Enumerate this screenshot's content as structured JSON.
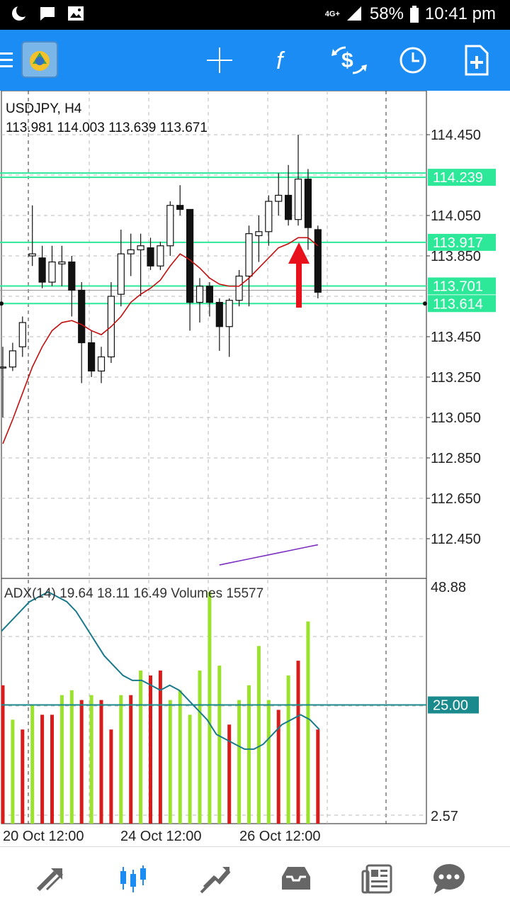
{
  "status_bar": {
    "network": "4G+",
    "battery": "58%",
    "time": "10:41 pm"
  },
  "toolbar": {
    "app_icon": "metatrader-logo-icon",
    "actions": [
      "crosshair-icon",
      "indicators-icon",
      "trade-icon",
      "timeframe-clock-icon",
      "new-order-icon"
    ]
  },
  "chart": {
    "symbol_title": "USDJPY, H4",
    "ohlc_text": "113.981 114.003 113.639 113.671",
    "indicator_text": "ADX(14) 19.64 18.11 16.49 Volumes 15577"
  },
  "chart_data": {
    "type": "candlestick",
    "price_axis": {
      "ticks": [
        "114.450",
        "114.050",
        "113.850",
        "113.450",
        "113.250",
        "113.050",
        "112.850",
        "112.650",
        "112.450"
      ],
      "highlighted_labels": [
        "114.239",
        "113.917",
        "113.701",
        "113.614"
      ],
      "highlight_color": "#2ee89a"
    },
    "indicator_axis": {
      "ticks": [
        "48.88",
        "2.57"
      ],
      "level_label": "25.00",
      "level_color": "#1a8a8c"
    },
    "time_axis": {
      "ticks": [
        "20 Oct 12:00",
        "24 Oct 12:00",
        "26 Oct 12:00"
      ]
    },
    "horizontal_levels": [
      114.239,
      113.917,
      113.701,
      113.614
    ],
    "candles": [
      {
        "o": 113.3,
        "h": 113.4,
        "l": 113.05,
        "c": 113.3
      },
      {
        "o": 113.3,
        "h": 113.42,
        "l": 113.28,
        "c": 113.38
      },
      {
        "o": 113.4,
        "h": 113.55,
        "l": 113.35,
        "c": 113.52
      },
      {
        "o": 113.85,
        "h": 114.1,
        "l": 113.8,
        "c": 113.86
      },
      {
        "o": 113.84,
        "h": 113.9,
        "l": 113.69,
        "c": 113.72
      },
      {
        "o": 113.72,
        "h": 113.9,
        "l": 113.7,
        "c": 113.82
      },
      {
        "o": 113.81,
        "h": 113.9,
        "l": 113.7,
        "c": 113.82
      },
      {
        "o": 113.82,
        "h": 113.85,
        "l": 113.55,
        "c": 113.68
      },
      {
        "o": 113.68,
        "h": 113.72,
        "l": 113.22,
        "c": 113.42
      },
      {
        "o": 113.42,
        "h": 113.48,
        "l": 113.25,
        "c": 113.28
      },
      {
        "o": 113.28,
        "h": 113.4,
        "l": 113.22,
        "c": 113.35
      },
      {
        "o": 113.35,
        "h": 113.72,
        "l": 113.32,
        "c": 113.65
      },
      {
        "o": 113.66,
        "h": 113.98,
        "l": 113.6,
        "c": 113.86
      },
      {
        "o": 113.86,
        "h": 113.96,
        "l": 113.75,
        "c": 113.88
      },
      {
        "o": 113.88,
        "h": 113.96,
        "l": 113.65,
        "c": 113.9
      },
      {
        "o": 113.89,
        "h": 113.94,
        "l": 113.78,
        "c": 113.8
      },
      {
        "o": 113.8,
        "h": 113.92,
        "l": 113.78,
        "c": 113.9
      },
      {
        "o": 113.9,
        "h": 114.12,
        "l": 113.85,
        "c": 114.1
      },
      {
        "o": 114.1,
        "h": 114.2,
        "l": 114.05,
        "c": 114.08
      },
      {
        "o": 114.08,
        "h": 114.08,
        "l": 113.48,
        "c": 113.62
      },
      {
        "o": 113.62,
        "h": 113.74,
        "l": 113.52,
        "c": 113.7
      },
      {
        "o": 113.7,
        "h": 113.72,
        "l": 113.55,
        "c": 113.62
      },
      {
        "o": 113.62,
        "h": 113.64,
        "l": 113.38,
        "c": 113.5
      },
      {
        "o": 113.5,
        "h": 113.64,
        "l": 113.35,
        "c": 113.63
      },
      {
        "o": 113.63,
        "h": 113.78,
        "l": 113.6,
        "c": 113.75
      },
      {
        "o": 113.75,
        "h": 114.0,
        "l": 113.6,
        "c": 113.96
      },
      {
        "o": 113.95,
        "h": 114.05,
        "l": 113.82,
        "c": 113.97
      },
      {
        "o": 113.97,
        "h": 114.15,
        "l": 113.9,
        "c": 114.12
      },
      {
        "o": 114.12,
        "h": 114.26,
        "l": 114.05,
        "c": 114.15
      },
      {
        "o": 114.15,
        "h": 114.3,
        "l": 114.0,
        "c": 114.03
      },
      {
        "o": 114.03,
        "h": 114.45,
        "l": 114.0,
        "c": 114.23
      },
      {
        "o": 114.23,
        "h": 114.28,
        "l": 113.88,
        "c": 113.99
      },
      {
        "o": 113.98,
        "h": 114.0,
        "l": 113.64,
        "c": 113.67
      }
    ],
    "moving_average_red": [
      112.92,
      113.04,
      113.17,
      113.3,
      113.4,
      113.48,
      113.52,
      113.53,
      113.51,
      113.48,
      113.46,
      113.5,
      113.55,
      113.62,
      113.66,
      113.69,
      113.73,
      113.8,
      113.86,
      113.83,
      113.79,
      113.74,
      113.71,
      113.7,
      113.7,
      113.74,
      113.79,
      113.84,
      113.89,
      113.91,
      113.94,
      113.94,
      113.9
    ],
    "moving_average_purple": [
      112.32,
      112.33,
      112.34,
      112.35,
      112.36,
      112.37,
      112.38,
      112.39,
      112.4,
      112.41,
      112.42
    ],
    "adx_line": [
      40,
      42,
      44,
      46,
      47,
      48,
      47,
      46,
      44,
      41,
      38,
      35,
      33,
      31,
      30,
      30,
      29,
      28,
      29,
      28,
      26,
      24,
      22,
      19,
      18,
      17,
      16,
      16,
      17,
      19,
      21,
      22,
      23,
      22,
      20
    ],
    "volumes": [
      {
        "v": 29,
        "up": false
      },
      {
        "v": 22,
        "up": true
      },
      {
        "v": 20,
        "up": false
      },
      {
        "v": 25,
        "up": true
      },
      {
        "v": 23,
        "up": false
      },
      {
        "v": 23,
        "up": false
      },
      {
        "v": 27,
        "up": true
      },
      {
        "v": 28,
        "up": true
      },
      {
        "v": 26,
        "up": false
      },
      {
        "v": 27,
        "up": true
      },
      {
        "v": 26,
        "up": false
      },
      {
        "v": 20,
        "up": false
      },
      {
        "v": 27,
        "up": true
      },
      {
        "v": 27,
        "up": false
      },
      {
        "v": 32,
        "up": true
      },
      {
        "v": 31,
        "up": false
      },
      {
        "v": 32,
        "up": false
      },
      {
        "v": 26,
        "up": true
      },
      {
        "v": 28,
        "up": true
      },
      {
        "v": 23,
        "up": true
      },
      {
        "v": 32,
        "up": true
      },
      {
        "v": 48,
        "up": true
      },
      {
        "v": 33,
        "up": true
      },
      {
        "v": 21,
        "up": false
      },
      {
        "v": 26,
        "up": true
      },
      {
        "v": 29,
        "up": true
      },
      {
        "v": 37,
        "up": true
      },
      {
        "v": 26,
        "up": true
      },
      {
        "v": 24,
        "up": false
      },
      {
        "v": 31,
        "up": true
      },
      {
        "v": 34,
        "up": false
      },
      {
        "v": 42,
        "up": true
      },
      {
        "v": 20,
        "up": false
      }
    ],
    "grid": true
  },
  "bottom_nav": [
    "quotes-icon",
    "chart-icon",
    "trade-icon",
    "history-icon",
    "news-icon",
    "chat-icon"
  ]
}
